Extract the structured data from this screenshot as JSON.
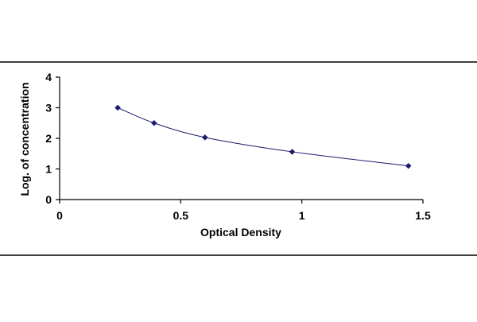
{
  "chart_data": {
    "type": "scatter",
    "title": "",
    "xlabel": "Optical Density",
    "ylabel": "Log. of concentration",
    "xlim": [
      0,
      1.5
    ],
    "ylim": [
      0,
      4
    ],
    "x_ticks": [
      0,
      0.5,
      1,
      1.5
    ],
    "x_tick_labels": [
      "0",
      "0.5",
      "1",
      "1.5"
    ],
    "y_ticks": [
      0,
      1,
      2,
      3,
      4
    ],
    "y_tick_labels": [
      "0",
      "1",
      "2",
      "3",
      "4"
    ],
    "grid": false,
    "legend": "none",
    "trendline": "smooth curve through points",
    "series": [
      {
        "points": [
          {
            "x": 0.24,
            "y": 3.0
          },
          {
            "x": 0.39,
            "y": 2.5
          },
          {
            "x": 0.6,
            "y": 2.03
          },
          {
            "x": 0.96,
            "y": 1.56
          },
          {
            "x": 1.44,
            "y": 1.1
          }
        ],
        "marker_color": "#1a1a6e",
        "line_color": "#1a1a6e"
      }
    ],
    "colors": {
      "axis": "#000000",
      "frame": "#000000"
    }
  }
}
